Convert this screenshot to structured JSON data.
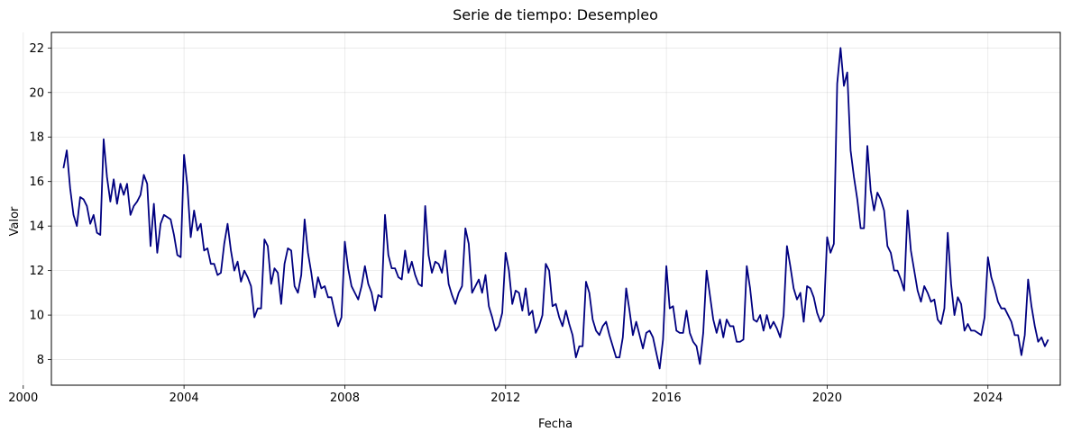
{
  "chart_data": {
    "type": "line",
    "title": "Serie de tiempo: Desempleo",
    "xlabel": "Fecha",
    "ylabel": "Valor",
    "xlim": [
      2000.7,
      2025.8
    ],
    "ylim": [
      6.85,
      22.7
    ],
    "grid": true,
    "line_color": "#000080",
    "x_ticks": [
      {
        "value": 2000,
        "label": "2000"
      },
      {
        "value": 2004,
        "label": "2004"
      },
      {
        "value": 2008,
        "label": "2008"
      },
      {
        "value": 2012,
        "label": "2012"
      },
      {
        "value": 2016,
        "label": "2016"
      },
      {
        "value": 2020,
        "label": "2020"
      },
      {
        "value": 2024,
        "label": "2024"
      }
    ],
    "y_ticks": [
      {
        "value": 8,
        "label": "8"
      },
      {
        "value": 10,
        "label": "10"
      },
      {
        "value": 12,
        "label": "12"
      },
      {
        "value": 14,
        "label": "14"
      },
      {
        "value": 16,
        "label": "16"
      },
      {
        "value": 18,
        "label": "18"
      },
      {
        "value": 20,
        "label": "20"
      },
      {
        "value": 22,
        "label": "22"
      }
    ],
    "series": [
      {
        "name": "Desempleo",
        "start": 2001.0,
        "step": 0.08333333,
        "values": [
          16.6,
          17.4,
          15.7,
          14.5,
          14.0,
          15.3,
          15.2,
          14.9,
          14.1,
          14.5,
          13.7,
          13.6,
          17.9,
          16.2,
          15.1,
          16.1,
          15.0,
          15.9,
          15.4,
          15.9,
          14.5,
          14.9,
          15.1,
          15.4,
          16.3,
          15.9,
          13.1,
          15.0,
          12.8,
          14.1,
          14.5,
          14.4,
          14.3,
          13.6,
          12.7,
          12.6,
          17.2,
          15.8,
          13.5,
          14.7,
          13.8,
          14.1,
          12.9,
          13.0,
          12.3,
          12.3,
          11.8,
          11.9,
          13.2,
          14.1,
          12.9,
          12.0,
          12.4,
          11.5,
          12.0,
          11.7,
          11.3,
          9.9,
          10.3,
          10.3,
          13.4,
          13.1,
          11.4,
          12.1,
          11.9,
          10.5,
          12.3,
          13.0,
          12.9,
          11.3,
          11.0,
          11.8,
          14.3,
          12.8,
          11.9,
          10.8,
          11.7,
          11.2,
          11.3,
          10.8,
          10.8,
          10.1,
          9.5,
          9.9,
          13.3,
          12.1,
          11.3,
          11.0,
          10.7,
          11.3,
          12.2,
          11.4,
          11.0,
          10.2,
          10.9,
          10.8,
          14.5,
          12.7,
          12.1,
          12.1,
          11.7,
          11.6,
          12.9,
          11.9,
          12.4,
          11.8,
          11.4,
          11.3,
          14.9,
          12.7,
          11.9,
          12.4,
          12.3,
          11.9,
          12.9,
          11.4,
          10.9,
          10.5,
          11.0,
          11.3,
          13.9,
          13.2,
          11.0,
          11.3,
          11.6,
          11.0,
          11.8,
          10.4,
          9.9,
          9.3,
          9.5,
          10.1,
          12.8,
          12.0,
          10.5,
          11.1,
          11.0,
          10.2,
          11.2,
          10.0,
          10.2,
          9.2,
          9.5,
          10.0,
          12.3,
          12.0,
          10.4,
          10.5,
          9.9,
          9.5,
          10.2,
          9.6,
          9.1,
          8.1,
          8.6,
          8.6,
          11.5,
          11.0,
          9.8,
          9.3,
          9.1,
          9.5,
          9.7,
          9.1,
          8.6,
          8.1,
          8.1,
          9.0,
          11.2,
          10.2,
          9.1,
          9.7,
          9.1,
          8.5,
          9.2,
          9.3,
          9.0,
          8.3,
          7.6,
          8.9,
          12.2,
          10.3,
          10.4,
          9.3,
          9.2,
          9.2,
          10.2,
          9.2,
          8.8,
          8.6,
          7.8,
          9.2,
          12.0,
          10.9,
          9.8,
          9.2,
          9.8,
          9.0,
          9.8,
          9.5,
          9.5,
          8.8,
          8.8,
          8.9,
          12.2,
          11.2,
          9.8,
          9.7,
          10.0,
          9.3,
          10.0,
          9.4,
          9.7,
          9.4,
          9.0,
          10.0,
          13.1,
          12.2,
          11.2,
          10.7,
          11.0,
          9.7,
          11.3,
          11.2,
          10.8,
          10.1,
          9.7,
          10.0,
          13.5,
          12.8,
          13.2,
          20.4,
          22.0,
          20.3,
          20.9,
          17.4,
          16.2,
          15.2,
          13.9,
          13.9,
          17.6,
          15.6,
          14.7,
          15.5,
          15.2,
          14.7,
          13.1,
          12.8,
          12.0,
          12.0,
          11.6,
          11.1,
          14.7,
          12.9,
          12.0,
          11.1,
          10.6,
          11.3,
          11.0,
          10.6,
          10.7,
          9.8,
          9.6,
          10.3,
          13.7,
          11.4,
          10.0,
          10.8,
          10.5,
          9.3,
          9.6,
          9.3,
          9.3,
          9.2,
          9.1,
          9.9,
          12.6,
          11.7,
          11.2,
          10.6,
          10.3,
          10.3,
          10.0,
          9.7,
          9.1,
          9.1,
          8.2,
          9.1,
          11.6,
          10.4,
          9.5,
          8.8,
          9.0,
          8.6,
          8.9
        ]
      }
    ]
  }
}
